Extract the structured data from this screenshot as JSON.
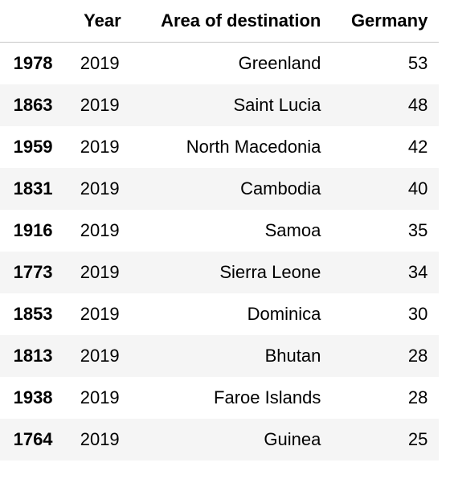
{
  "table": {
    "columns": [
      "",
      "Year",
      "Area of destination",
      "Germany"
    ],
    "rows": [
      {
        "index": "1978",
        "year": "2019",
        "area": "Greenland",
        "germany": "53"
      },
      {
        "index": "1863",
        "year": "2019",
        "area": "Saint Lucia",
        "germany": "48"
      },
      {
        "index": "1959",
        "year": "2019",
        "area": "North Macedonia",
        "germany": "42"
      },
      {
        "index": "1831",
        "year": "2019",
        "area": "Cambodia",
        "germany": "40"
      },
      {
        "index": "1916",
        "year": "2019",
        "area": "Samoa",
        "germany": "35"
      },
      {
        "index": "1773",
        "year": "2019",
        "area": "Sierra Leone",
        "germany": "34"
      },
      {
        "index": "1853",
        "year": "2019",
        "area": "Dominica",
        "germany": "30"
      },
      {
        "index": "1813",
        "year": "2019",
        "area": "Bhutan",
        "germany": "28"
      },
      {
        "index": "1938",
        "year": "2019",
        "area": "Faroe Islands",
        "germany": "28"
      },
      {
        "index": "1764",
        "year": "2019",
        "area": "Guinea",
        "germany": "25"
      }
    ]
  }
}
